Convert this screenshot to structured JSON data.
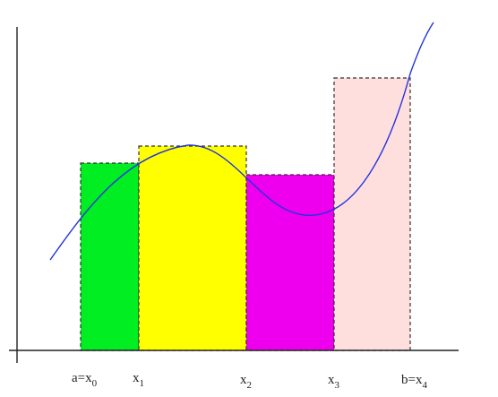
{
  "diagram": {
    "x_labels": [
      {
        "main": "a=x",
        "sub": "0"
      },
      {
        "main": "x",
        "sub": "1"
      },
      {
        "main": "x",
        "sub": "2"
      },
      {
        "main": "x",
        "sub": "3"
      },
      {
        "main": "b=x",
        "sub": "4"
      }
    ],
    "rectangles": [
      {
        "color": "#00ee22"
      },
      {
        "color": "#ffff00"
      },
      {
        "color": "#ee00ee"
      },
      {
        "color": "#ffdede"
      }
    ],
    "curve_color": "#2233dd",
    "axis_color": "#222222"
  }
}
